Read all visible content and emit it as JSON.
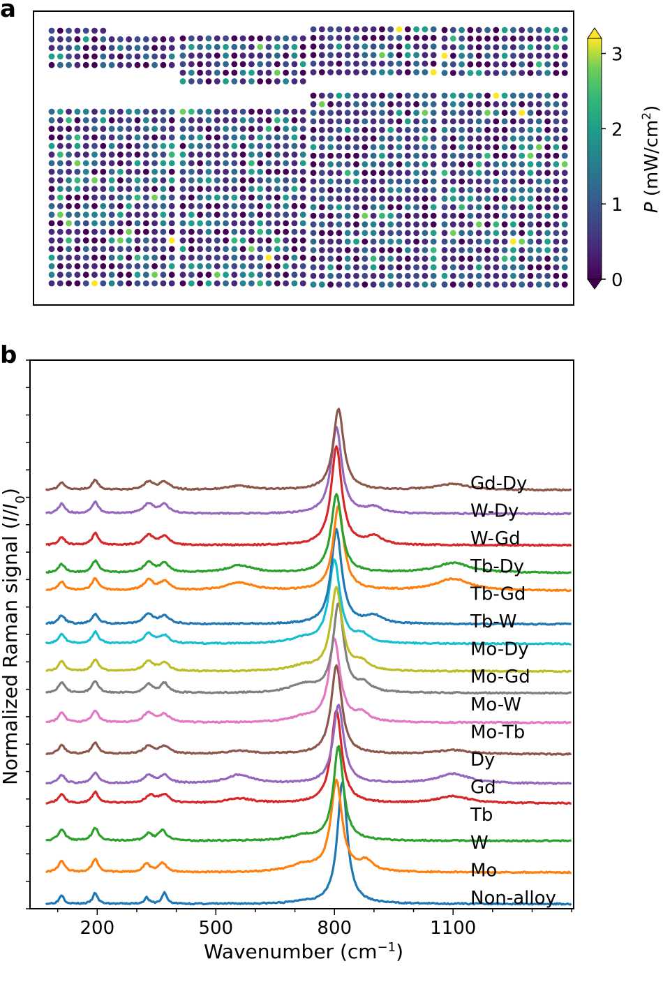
{
  "chart_data": [
    {
      "panel": "a",
      "type": "heatmap",
      "colorbar": {
        "label_italic": "P",
        "label_rest": "(mW/cm",
        "label_sup": "2",
        "label_close": ")",
        "ticks": [
          0,
          1,
          2,
          3
        ],
        "range": [
          0,
          3.2
        ],
        "colormap": "viridis",
        "extend": "both"
      },
      "blocks": [
        {
          "grid": "8 x 5",
          "partial_first_row": 7
        },
        {
          "grid": "8 x 6"
        },
        {
          "grid": "8 x 6"
        },
        {
          "grid": "8 x 6"
        },
        {
          "grid": "8 x 21"
        },
        {
          "grid": "8 x 21"
        },
        {
          "grid": "8 x 23"
        },
        {
          "grid": "8 x 23"
        }
      ]
    },
    {
      "panel": "b",
      "type": "line",
      "xlabel": "Wavenumber (cm",
      "xlabel_sup": "−1",
      "xlabel_close": ")",
      "ylabel": "Normalized Raman signal (",
      "ylabel_i": "I",
      "ylabel_slash": "/",
      "ylabel_i0": "I",
      "ylabel_sub": "0",
      "ylabel_close": ")",
      "xlim": [
        30,
        1405
      ],
      "xticks": [
        200,
        500,
        800,
        1100
      ],
      "xticklabels": [
        "200",
        "500",
        "800",
        "1100"
      ],
      "series": [
        {
          "name": "Non-alloy",
          "color": "#1f77b4",
          "baseline": 0.0,
          "peaks": [
            [
              110,
              0.23,
              7
            ],
            [
              195,
              0.28,
              7
            ],
            [
              325,
              0.16,
              7
            ],
            [
              370,
              0.29,
              7
            ],
            [
              720,
              0.05,
              25
            ],
            [
              820,
              3.1,
              15
            ]
          ]
        },
        {
          "name": "Mo",
          "color": "#ff7f0e",
          "baseline": 0.8,
          "peaks": [
            [
              110,
              0.28,
              10
            ],
            [
              195,
              0.33,
              10
            ],
            [
              325,
              0.22,
              10
            ],
            [
              365,
              0.24,
              12
            ],
            [
              720,
              0.18,
              40
            ],
            [
              805,
              2.3,
              17
            ],
            [
              880,
              0.25,
              20
            ]
          ]
        },
        {
          "name": "W",
          "color": "#2ca02c",
          "baseline": 1.6,
          "peaks": [
            [
              110,
              0.3,
              10
            ],
            [
              195,
              0.32,
              10
            ],
            [
              330,
              0.18,
              10
            ],
            [
              365,
              0.26,
              12
            ],
            [
              720,
              0.12,
              40
            ],
            [
              810,
              2.4,
              15
            ]
          ]
        },
        {
          "name": "Tb",
          "color": "#d62728",
          "baseline": 2.55,
          "peaks": [
            [
              110,
              0.22,
              10
            ],
            [
              195,
              0.28,
              10
            ],
            [
              335,
              0.2,
              15
            ],
            [
              370,
              0.2,
              15
            ],
            [
              560,
              0.12,
              40
            ],
            [
              805,
              2.35,
              16
            ],
            [
              1100,
              0.18,
              50
            ]
          ]
        },
        {
          "name": "Gd",
          "color": "#9467bd",
          "baseline": 3.05,
          "peaks": [
            [
              110,
              0.22,
              10
            ],
            [
              195,
              0.28,
              10
            ],
            [
              330,
              0.2,
              15
            ],
            [
              370,
              0.2,
              15
            ],
            [
              560,
              0.22,
              40
            ],
            [
              810,
              2.0,
              16
            ],
            [
              1100,
              0.25,
              50
            ]
          ]
        },
        {
          "name": "Dy",
          "color": "#8c564b",
          "baseline": 3.8,
          "peaks": [
            [
              110,
              0.22,
              10
            ],
            [
              195,
              0.28,
              10
            ],
            [
              330,
              0.2,
              15
            ],
            [
              370,
              0.2,
              15
            ],
            [
              560,
              0.08,
              40
            ],
            [
              805,
              2.25,
              16
            ],
            [
              1100,
              0.1,
              50
            ]
          ]
        },
        {
          "name": "Mo-Tb",
          "color": "#e377c2",
          "baseline": 4.6,
          "peaks": [
            [
              110,
              0.25,
              10
            ],
            [
              195,
              0.3,
              10
            ],
            [
              330,
              0.25,
              15
            ],
            [
              370,
              0.2,
              15
            ],
            [
              720,
              0.12,
              40
            ],
            [
              800,
              2.1,
              17
            ],
            [
              870,
              0.2,
              20
            ]
          ]
        },
        {
          "name": "Mo-W",
          "color": "#7f7f7f",
          "baseline": 5.35,
          "peaks": [
            [
              110,
              0.28,
              10
            ],
            [
              195,
              0.3,
              10
            ],
            [
              330,
              0.22,
              12
            ],
            [
              370,
              0.25,
              12
            ],
            [
              720,
              0.2,
              40
            ],
            [
              810,
              2.25,
              16
            ],
            [
              875,
              0.2,
              20
            ]
          ]
        },
        {
          "name": "Mo-Gd",
          "color": "#bcbd22",
          "baseline": 5.9,
          "peaks": [
            [
              110,
              0.25,
              10
            ],
            [
              195,
              0.3,
              10
            ],
            [
              330,
              0.25,
              15
            ],
            [
              370,
              0.2,
              15
            ],
            [
              720,
              0.12,
              40
            ],
            [
              805,
              2.1,
              17
            ],
            [
              870,
              0.2,
              20
            ]
          ]
        },
        {
          "name": "Mo-Dy",
          "color": "#17becf",
          "baseline": 6.6,
          "peaks": [
            [
              110,
              0.25,
              10
            ],
            [
              195,
              0.3,
              10
            ],
            [
              330,
              0.25,
              15
            ],
            [
              370,
              0.2,
              15
            ],
            [
              720,
              0.12,
              40
            ],
            [
              800,
              2.1,
              17
            ],
            [
              870,
              0.2,
              20
            ]
          ]
        },
        {
          "name": "Tb-W",
          "color": "#1f77b4",
          "baseline": 7.1,
          "peaks": [
            [
              110,
              0.22,
              10
            ],
            [
              195,
              0.25,
              10
            ],
            [
              330,
              0.25,
              15
            ],
            [
              370,
              0.2,
              15
            ],
            [
              805,
              2.4,
              16
            ],
            [
              900,
              0.2,
              25
            ]
          ]
        },
        {
          "name": "Tb-Gd",
          "color": "#ff7f0e",
          "baseline": 7.95,
          "peaks": [
            [
              110,
              0.22,
              10
            ],
            [
              195,
              0.3,
              10
            ],
            [
              330,
              0.25,
              15
            ],
            [
              370,
              0.22,
              15
            ],
            [
              560,
              0.2,
              40
            ],
            [
              810,
              2.15,
              16
            ],
            [
              1100,
              0.3,
              50
            ]
          ]
        },
        {
          "name": "Tb-Dy",
          "color": "#2ca02c",
          "baseline": 8.4,
          "peaks": [
            [
              110,
              0.22,
              10
            ],
            [
              195,
              0.3,
              10
            ],
            [
              330,
              0.25,
              15
            ],
            [
              370,
              0.22,
              15
            ],
            [
              560,
              0.18,
              40
            ],
            [
              805,
              2.0,
              16
            ],
            [
              1100,
              0.25,
              50
            ]
          ]
        },
        {
          "name": "W-Gd",
          "color": "#d62728",
          "baseline": 9.1,
          "peaks": [
            [
              110,
              0.2,
              10
            ],
            [
              195,
              0.3,
              10
            ],
            [
              330,
              0.25,
              15
            ],
            [
              370,
              0.22,
              15
            ],
            [
              805,
              2.5,
              16
            ],
            [
              900,
              0.2,
              25
            ]
          ]
        },
        {
          "name": "W-Dy",
          "color": "#9467bd",
          "baseline": 9.9,
          "peaks": [
            [
              110,
              0.25,
              10
            ],
            [
              195,
              0.3,
              10
            ],
            [
              330,
              0.25,
              15
            ],
            [
              370,
              0.22,
              15
            ],
            [
              805,
              2.2,
              16
            ],
            [
              900,
              0.15,
              25
            ]
          ]
        },
        {
          "name": "Gd-Dy",
          "color": "#8c564b",
          "baseline": 10.5,
          "peaks": [
            [
              110,
              0.18,
              10
            ],
            [
              195,
              0.25,
              10
            ],
            [
              330,
              0.2,
              15
            ],
            [
              370,
              0.2,
              15
            ],
            [
              560,
              0.1,
              40
            ],
            [
              810,
              2.05,
              16
            ],
            [
              1100,
              0.15,
              50
            ]
          ]
        }
      ]
    }
  ],
  "panel_labels": {
    "a": "a",
    "b": "b"
  }
}
